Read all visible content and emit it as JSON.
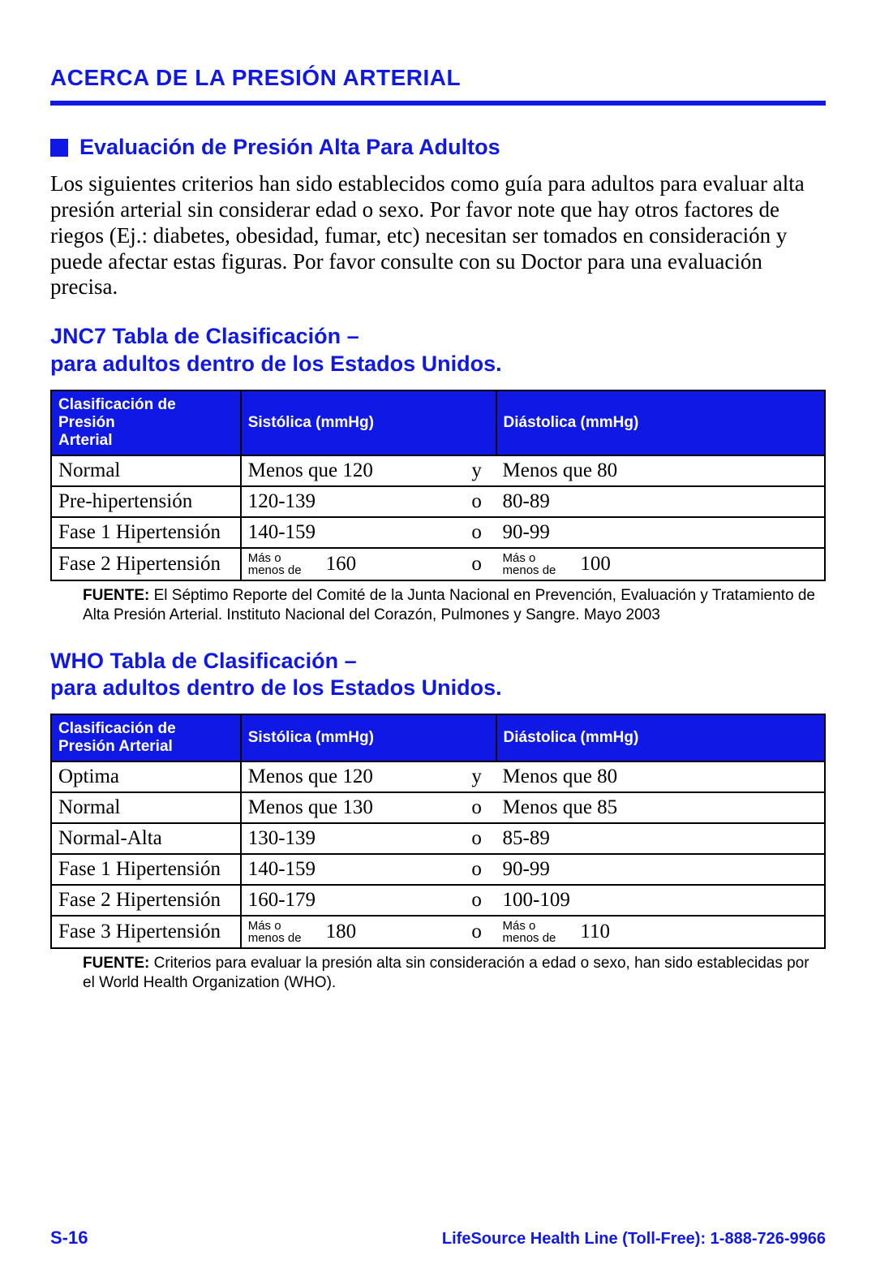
{
  "colors": {
    "accent": "#1019e3",
    "text": "#000000",
    "bg": "#ffffff"
  },
  "title": "ACERCA DE LA PRESIÓN ARTERIAL",
  "section_heading": "Evaluación de Presión Alta Para Adultos",
  "intro_paragraph": "Los siguientes criterios han sido establecidos como guía para adultos para evaluar alta presión arterial sin considerar edad o sexo. Por favor note que hay otros factores de riegos (Ej.: diabetes, obesidad, fumar, etc) necesitan ser tomados en consideración y puede afectar estas figuras. Por favor consulte con su Doctor para una evaluación precisa.",
  "jnc7": {
    "heading_line1": "JNC7 Tabla de Clasificación –",
    "heading_line2": "para adultos dentro de los Estados Unidos.",
    "columns": {
      "class_line1": "Clasificación de Presión",
      "class_line2": "Arterial",
      "sys": "Sistólica (mmHg)",
      "dia": "Diástolica (mmHg)"
    },
    "rows": [
      {
        "class": "Normal",
        "sys": "Menos que 120",
        "conj": "y",
        "dia": "Menos que 80",
        "stacked": false
      },
      {
        "class": "Pre-hipertensión",
        "sys": "120-139",
        "conj": "o",
        "dia": "80-89",
        "stacked": false
      },
      {
        "class": "Fase 1 Hipertensión",
        "sys": "140-159",
        "conj": "o",
        "dia": "90-99",
        "stacked": false
      },
      {
        "class": "Fase 2 Hipertensión",
        "sys_prefix": "Más o\nmenos de",
        "sys_num": "160",
        "conj": "o",
        "dia_prefix": "Más o\nmenos de",
        "dia_num": "100",
        "stacked": true
      }
    ],
    "source_label": "FUENTE:",
    "source_text": " El Séptimo Reporte del Comité de la Junta Nacional en Prevención, Evaluación y Tratamiento de Alta Presión Arterial. Instituto Nacional del Corazón, Pulmones y Sangre. Mayo 2003"
  },
  "who": {
    "heading_line1": "WHO Tabla de Clasificación –",
    "heading_line2": "para adultos dentro de los Estados Unidos.",
    "columns": {
      "class_line1": "Clasificación de",
      "class_line2": "Presión Arterial",
      "sys": "Sistólica (mmHg)",
      "dia": "Diástolica (mmHg)"
    },
    "rows": [
      {
        "class": "Optima",
        "sys": "Menos que 120",
        "conj": "y",
        "dia": "Menos que 80",
        "stacked": false
      },
      {
        "class": "Normal",
        "sys": "Menos que 130",
        "conj": "o",
        "dia": "Menos que 85",
        "stacked": false
      },
      {
        "class": "Normal-Alta",
        "sys": "130-139",
        "conj": "o",
        "dia": "85-89",
        "stacked": false
      },
      {
        "class": "Fase 1 Hipertensión",
        "sys": "140-159",
        "conj": "o",
        "dia": "90-99",
        "stacked": false
      },
      {
        "class": "Fase 2 Hipertensión",
        "sys": "160-179",
        "conj": "o",
        "dia": "100-109",
        "stacked": false
      },
      {
        "class": "Fase 3 Hipertensión",
        "sys_prefix": "Más o\nmenos de",
        "sys_num": "180",
        "conj": "o",
        "dia_prefix": "Más o\nmenos de",
        "dia_num": "110",
        "stacked": true
      }
    ],
    "source_label": "FUENTE:",
    "source_text": " Criterios para evaluar la presión alta sin consideración a edad o sexo, han sido establecidas por el World Health Organization (WHO)."
  },
  "footer": {
    "page": "S-16",
    "right": "LifeSource Health Line (Toll-Free): 1-888-726-9966"
  }
}
